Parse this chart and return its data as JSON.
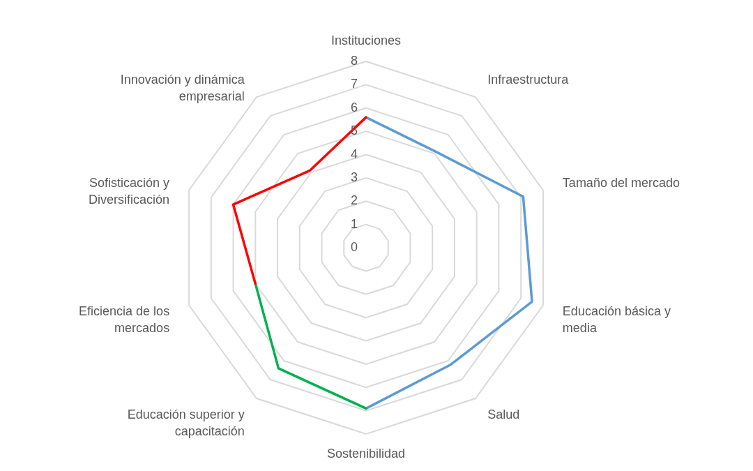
{
  "chart_data": {
    "type": "radar",
    "categories": [
      "Instituciones",
      "Infraestructura",
      "Tamaño del mercado",
      "Educación básica y media",
      "Salud",
      "Sostenibilidad",
      "Educación superior y capacitación",
      "Eficiencia de los mercados",
      "Sofisticación y Diversificación",
      "Innovación y dinámica empresarial"
    ],
    "series": [
      {
        "color": "#5b9bd5",
        "values": [
          5.6,
          5.1,
          7.1,
          7.5,
          6.2,
          6.9,
          null,
          null,
          null,
          null
        ]
      },
      {
        "color": "#00b050",
        "values": [
          null,
          null,
          null,
          null,
          null,
          6.9,
          6.4,
          5.0,
          null,
          null
        ]
      },
      {
        "color": "#ff0000",
        "values": [
          5.6,
          null,
          null,
          null,
          null,
          null,
          null,
          5.0,
          6.0,
          4.1
        ]
      }
    ],
    "ylim": [
      0,
      8
    ],
    "yticks": [
      0,
      1,
      2,
      3,
      4,
      5,
      6,
      7,
      8
    ],
    "grid": true,
    "legend": false,
    "marker": "none",
    "line_style": "solid"
  }
}
